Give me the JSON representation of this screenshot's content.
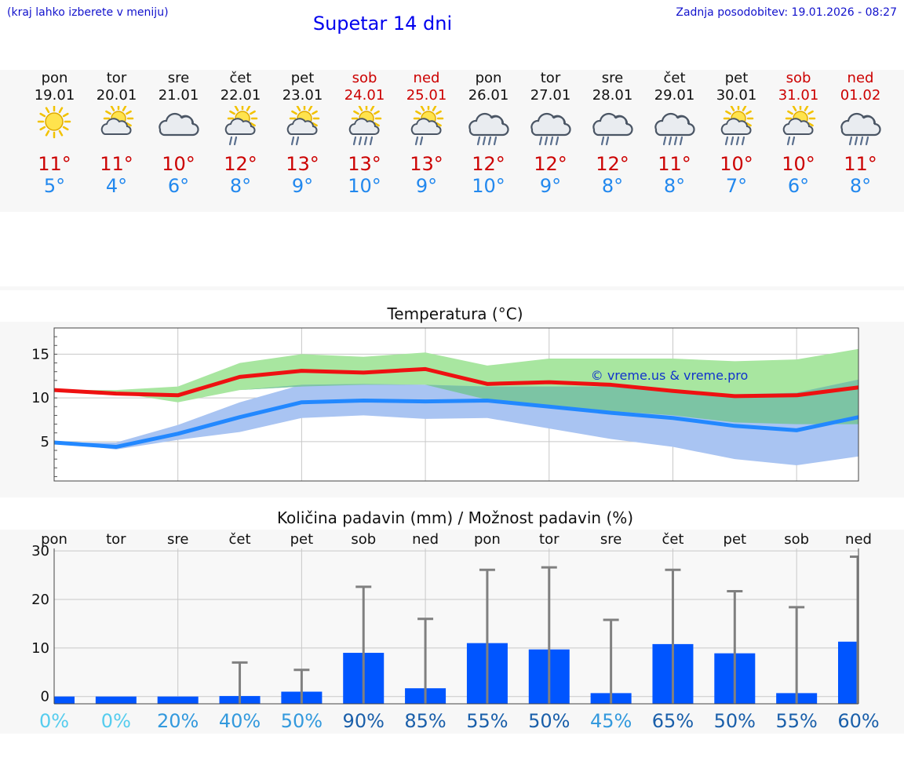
{
  "header": {
    "hint": "(kraj lahko izberete v meniju)",
    "title": "Supetar 14 dni",
    "updated": "Zadnja posodobitev: 19.01.2026 - 08:27"
  },
  "days": [
    {
      "name": "pon",
      "date": "19.01",
      "weekend": false,
      "icon": "sun-icon",
      "tmax": "11°",
      "tmin": "5°"
    },
    {
      "name": "tor",
      "date": "20.01",
      "weekend": false,
      "icon": "sun-cloud-icon",
      "tmax": "11°",
      "tmin": "4°"
    },
    {
      "name": "sre",
      "date": "21.01",
      "weekend": false,
      "icon": "cloudy-icon",
      "tmax": "10°",
      "tmin": "6°"
    },
    {
      "name": "čet",
      "date": "22.01",
      "weekend": false,
      "icon": "sun-cloud-light-rain-icon",
      "tmax": "12°",
      "tmin": "8°"
    },
    {
      "name": "pet",
      "date": "23.01",
      "weekend": false,
      "icon": "sun-cloud-light-rain-icon",
      "tmax": "13°",
      "tmin": "9°"
    },
    {
      "name": "sob",
      "date": "24.01",
      "weekend": true,
      "icon": "sun-cloud-rain-icon",
      "tmax": "13°",
      "tmin": "10°"
    },
    {
      "name": "ned",
      "date": "25.01",
      "weekend": true,
      "icon": "sun-cloud-light-rain-icon",
      "tmax": "13°",
      "tmin": "9°"
    },
    {
      "name": "pon",
      "date": "26.01",
      "weekend": false,
      "icon": "cloud-rain-icon",
      "tmax": "12°",
      "tmin": "10°"
    },
    {
      "name": "tor",
      "date": "27.01",
      "weekend": false,
      "icon": "cloud-rain-icon",
      "tmax": "12°",
      "tmin": "9°"
    },
    {
      "name": "sre",
      "date": "28.01",
      "weekend": false,
      "icon": "cloud-light-rain-icon",
      "tmax": "12°",
      "tmin": "8°"
    },
    {
      "name": "čet",
      "date": "29.01",
      "weekend": false,
      "icon": "cloud-rain-icon",
      "tmax": "11°",
      "tmin": "8°"
    },
    {
      "name": "pet",
      "date": "30.01",
      "weekend": false,
      "icon": "sun-cloud-rain-icon",
      "tmax": "10°",
      "tmin": "7°"
    },
    {
      "name": "sob",
      "date": "31.01",
      "weekend": true,
      "icon": "sun-cloud-light-rain-icon",
      "tmax": "10°",
      "tmin": "6°"
    },
    {
      "name": "ned",
      "date": "01.02",
      "weekend": true,
      "icon": "cloud-rain-icon",
      "tmax": "11°",
      "tmin": "8°"
    }
  ],
  "colors": {
    "max_line": "#ee1111",
    "min_line": "#2288ff",
    "max_band": "#a8e6a0",
    "min_band": "#a9c4f2",
    "overlap_band": "#7cc4a4",
    "bar": "#0055ff",
    "whisker": "#808080"
  },
  "chart_data": [
    {
      "type": "line",
      "title": "Temperatura (°C)",
      "watermark": "© vreme.us & vreme.pro",
      "x": [
        0,
        1,
        2,
        3,
        4,
        5,
        6,
        7,
        8,
        9,
        10,
        11,
        12,
        13
      ],
      "ylim": [
        0.5,
        18
      ],
      "yticks": [
        5,
        10,
        15
      ],
      "grid": true,
      "series": [
        {
          "name": "max",
          "values": [
            10.9,
            10.5,
            10.3,
            12.4,
            13.1,
            12.9,
            13.3,
            11.6,
            11.8,
            11.5,
            10.8,
            10.2,
            10.3,
            11.2
          ]
        },
        {
          "name": "min",
          "values": [
            4.9,
            4.4,
            5.9,
            7.8,
            9.5,
            9.7,
            9.6,
            9.7,
            9.0,
            8.3,
            7.7,
            6.8,
            6.3,
            7.8
          ]
        }
      ],
      "bands": [
        {
          "name": "max_range",
          "low": [
            10.9,
            10.6,
            9.5,
            10.9,
            11.3,
            11.5,
            11.5,
            9.8,
            9.0,
            8.5,
            8.0,
            7.2,
            7.0,
            7.0
          ],
          "high": [
            10.9,
            10.9,
            11.3,
            14.0,
            15.0,
            14.7,
            15.2,
            13.7,
            14.5,
            14.5,
            14.5,
            14.2,
            14.4,
            15.6
          ]
        },
        {
          "name": "min_range",
          "low": [
            4.9,
            4.1,
            5.2,
            6.1,
            7.7,
            8.0,
            7.6,
            7.7,
            6.5,
            5.3,
            4.4,
            3.0,
            2.3,
            3.3
          ],
          "high": [
            4.9,
            4.9,
            6.9,
            9.5,
            11.5,
            11.6,
            11.5,
            11.3,
            11.3,
            11.3,
            10.8,
            10.4,
            10.6,
            12.1
          ]
        }
      ]
    },
    {
      "type": "bar",
      "title": "Količina padavin (mm) / Možnost padavin (%)",
      "categories": [
        "pon",
        "tor",
        "sre",
        "čet",
        "pet",
        "sob",
        "ned",
        "pon",
        "tor",
        "sre",
        "čet",
        "pet",
        "sob",
        "ned"
      ],
      "values": [
        0,
        0,
        0,
        0.1,
        1.0,
        9.0,
        1.7,
        11.0,
        9.7,
        0.7,
        10.8,
        8.9,
        0.7,
        11.3
      ],
      "whisker_high": [
        0,
        0,
        0,
        7.0,
        5.5,
        22.6,
        16.0,
        26.1,
        26.6,
        15.8,
        26.1,
        21.7,
        18.4,
        28.8
      ],
      "ylim": [
        -1.5,
        30.5
      ],
      "yticks": [
        0,
        10,
        20,
        30
      ],
      "probability": [
        "0%",
        "0%",
        "20%",
        "40%",
        "50%",
        "90%",
        "85%",
        "55%",
        "50%",
        "45%",
        "65%",
        "50%",
        "55%",
        "60%"
      ],
      "probability_colors": [
        "#55ccee",
        "#55ccee",
        "#3399dd",
        "#3399dd",
        "#3399dd",
        "#1a5faa",
        "#1a5faa",
        "#1a5faa",
        "#1a5faa",
        "#3399dd",
        "#1a5faa",
        "#1a5faa",
        "#1a5faa",
        "#1a5faa"
      ]
    }
  ]
}
